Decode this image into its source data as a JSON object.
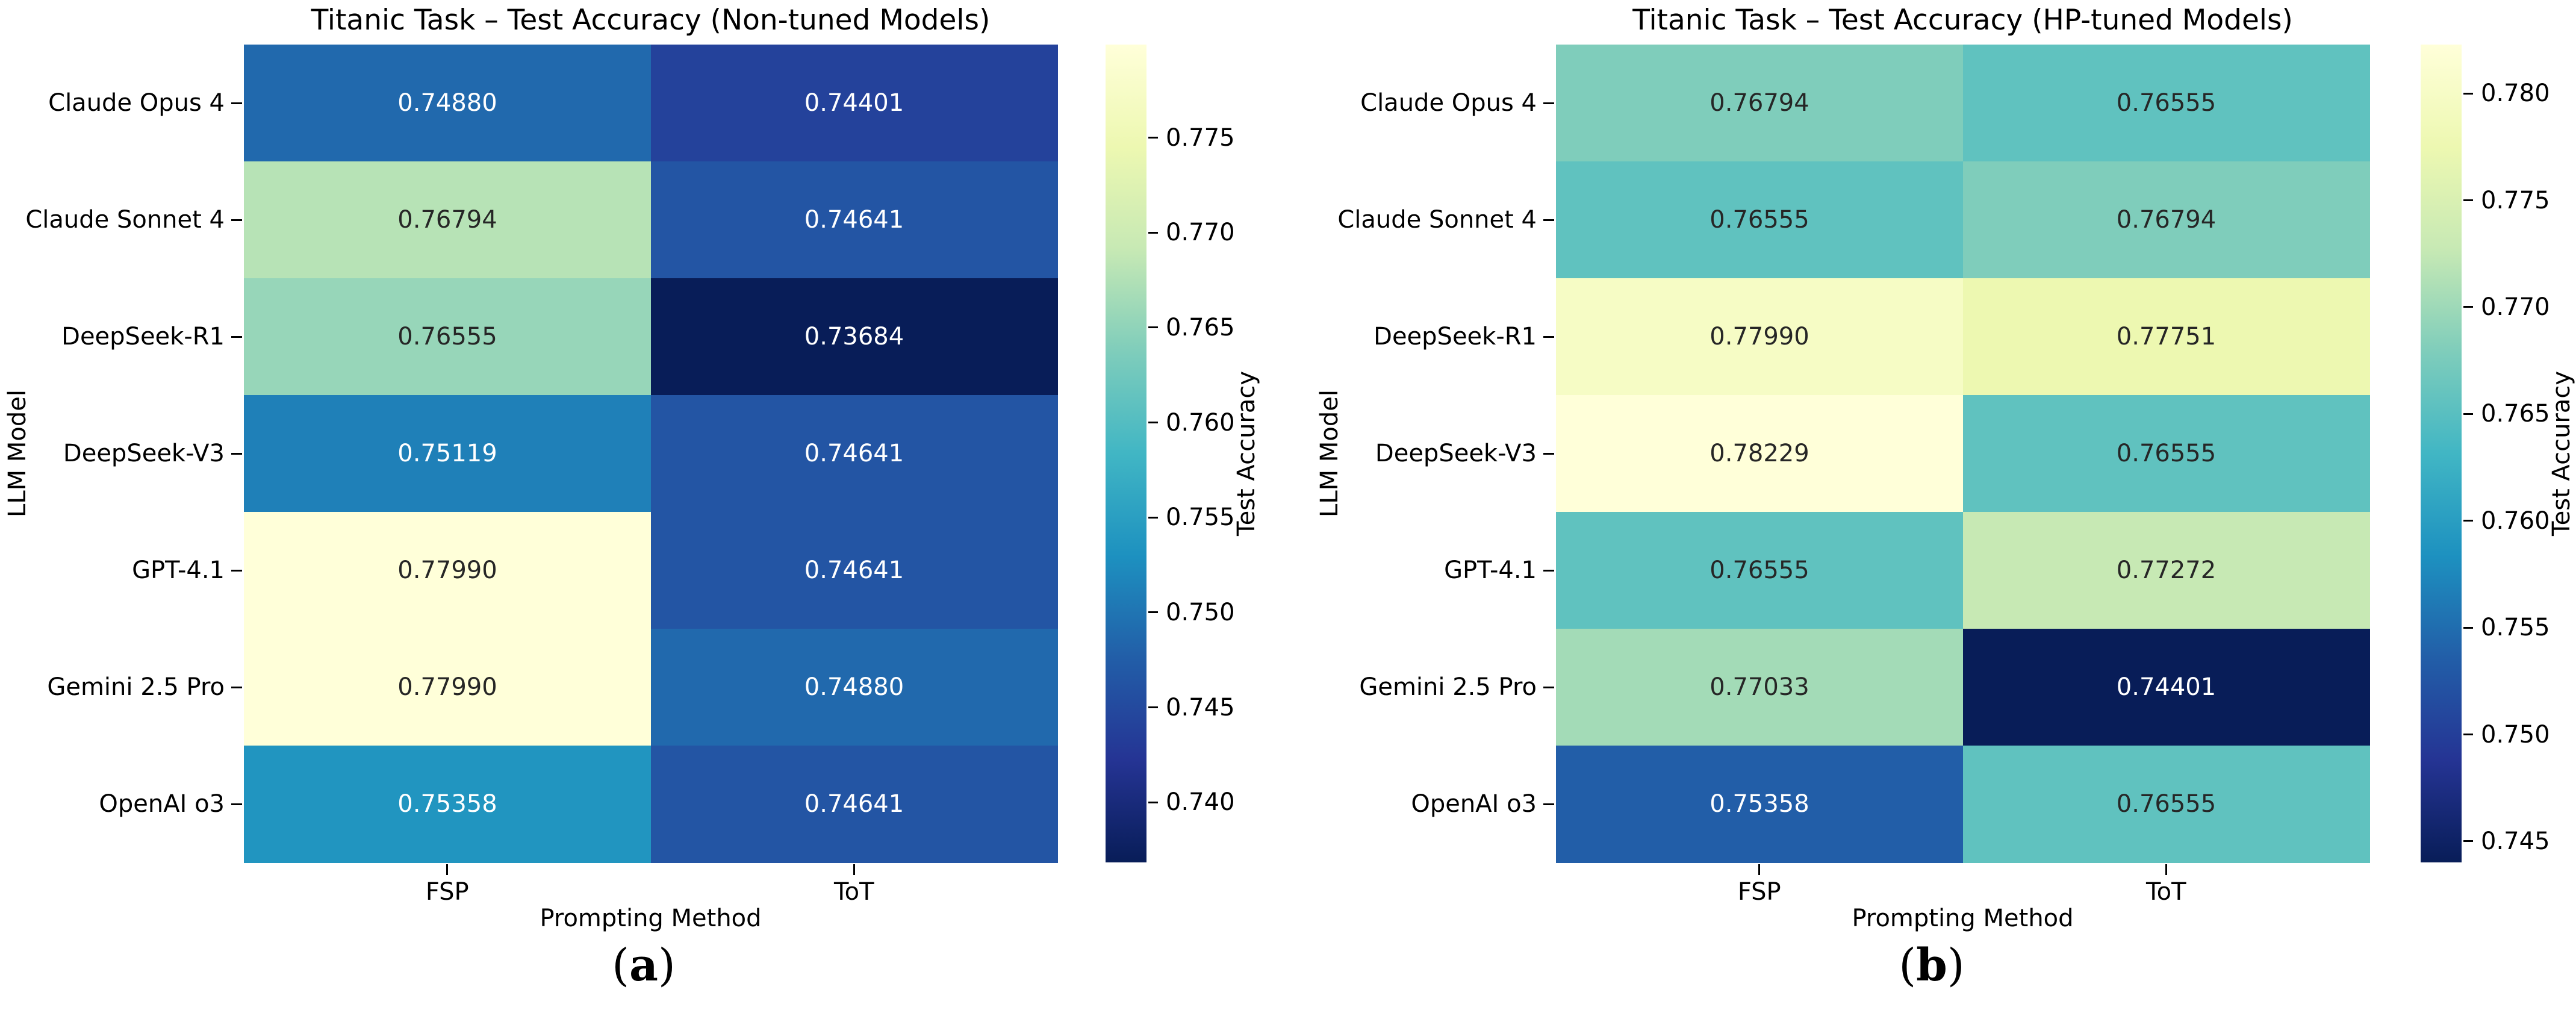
{
  "chart_data": [
    {
      "type": "heatmap",
      "title": "Titanic Task – Test Accuracy (Non-tuned Models)",
      "xlabel": "Prompting Method",
      "ylabel": "LLM Model",
      "colorbar_label": "Test Accuracy",
      "columns": [
        "FSP",
        "ToT"
      ],
      "rows": [
        "Claude Opus 4",
        "Claude Sonnet 4",
        "DeepSeek-R1",
        "DeepSeek-V3",
        "GPT-4.1",
        "Gemini 2.5 Pro",
        "OpenAI o3"
      ],
      "values": [
        [
          0.7488,
          0.74401
        ],
        [
          0.76794,
          0.74641
        ],
        [
          0.76555,
          0.73684
        ],
        [
          0.75119,
          0.74641
        ],
        [
          0.7799,
          0.74641
        ],
        [
          0.7799,
          0.7488
        ],
        [
          0.75358,
          0.74641
        ]
      ],
      "value_format_decimals": 5,
      "vmin": 0.73684,
      "vmax": 0.7799,
      "colormap": "YlGnBu_r",
      "colorbar_ticks": [
        "0.775",
        "0.770",
        "0.765",
        "0.760",
        "0.755",
        "0.750",
        "0.745",
        "0.740"
      ],
      "caption": {
        "open": "(",
        "label": "a",
        "close": ")"
      }
    },
    {
      "type": "heatmap",
      "title": "Titanic Task – Test Accuracy (HP-tuned Models)",
      "xlabel": "Prompting Method",
      "ylabel": "LLM Model",
      "colorbar_label": "Test Accuracy",
      "columns": [
        "FSP",
        "ToT"
      ],
      "rows": [
        "Claude Opus 4",
        "Claude Sonnet 4",
        "DeepSeek-R1",
        "DeepSeek-V3",
        "GPT-4.1",
        "Gemini 2.5 Pro",
        "OpenAI o3"
      ],
      "values": [
        [
          0.76794,
          0.76555
        ],
        [
          0.76555,
          0.76794
        ],
        [
          0.7799,
          0.77751
        ],
        [
          0.78229,
          0.76555
        ],
        [
          0.76555,
          0.77272
        ],
        [
          0.77033,
          0.74401
        ],
        [
          0.75358,
          0.76555
        ]
      ],
      "value_format_decimals": 5,
      "vmin": 0.74401,
      "vmax": 0.78229,
      "colormap": "YlGnBu_r",
      "colorbar_ticks": [
        "0.780",
        "0.775",
        "0.770",
        "0.765",
        "0.760",
        "0.755",
        "0.750",
        "0.745"
      ],
      "caption": {
        "open": "(",
        "label": "b",
        "close": ")"
      }
    }
  ],
  "colors": {
    "annotation_dark": "#262626",
    "annotation_light": "#ffffff",
    "background": "#ffffff"
  }
}
